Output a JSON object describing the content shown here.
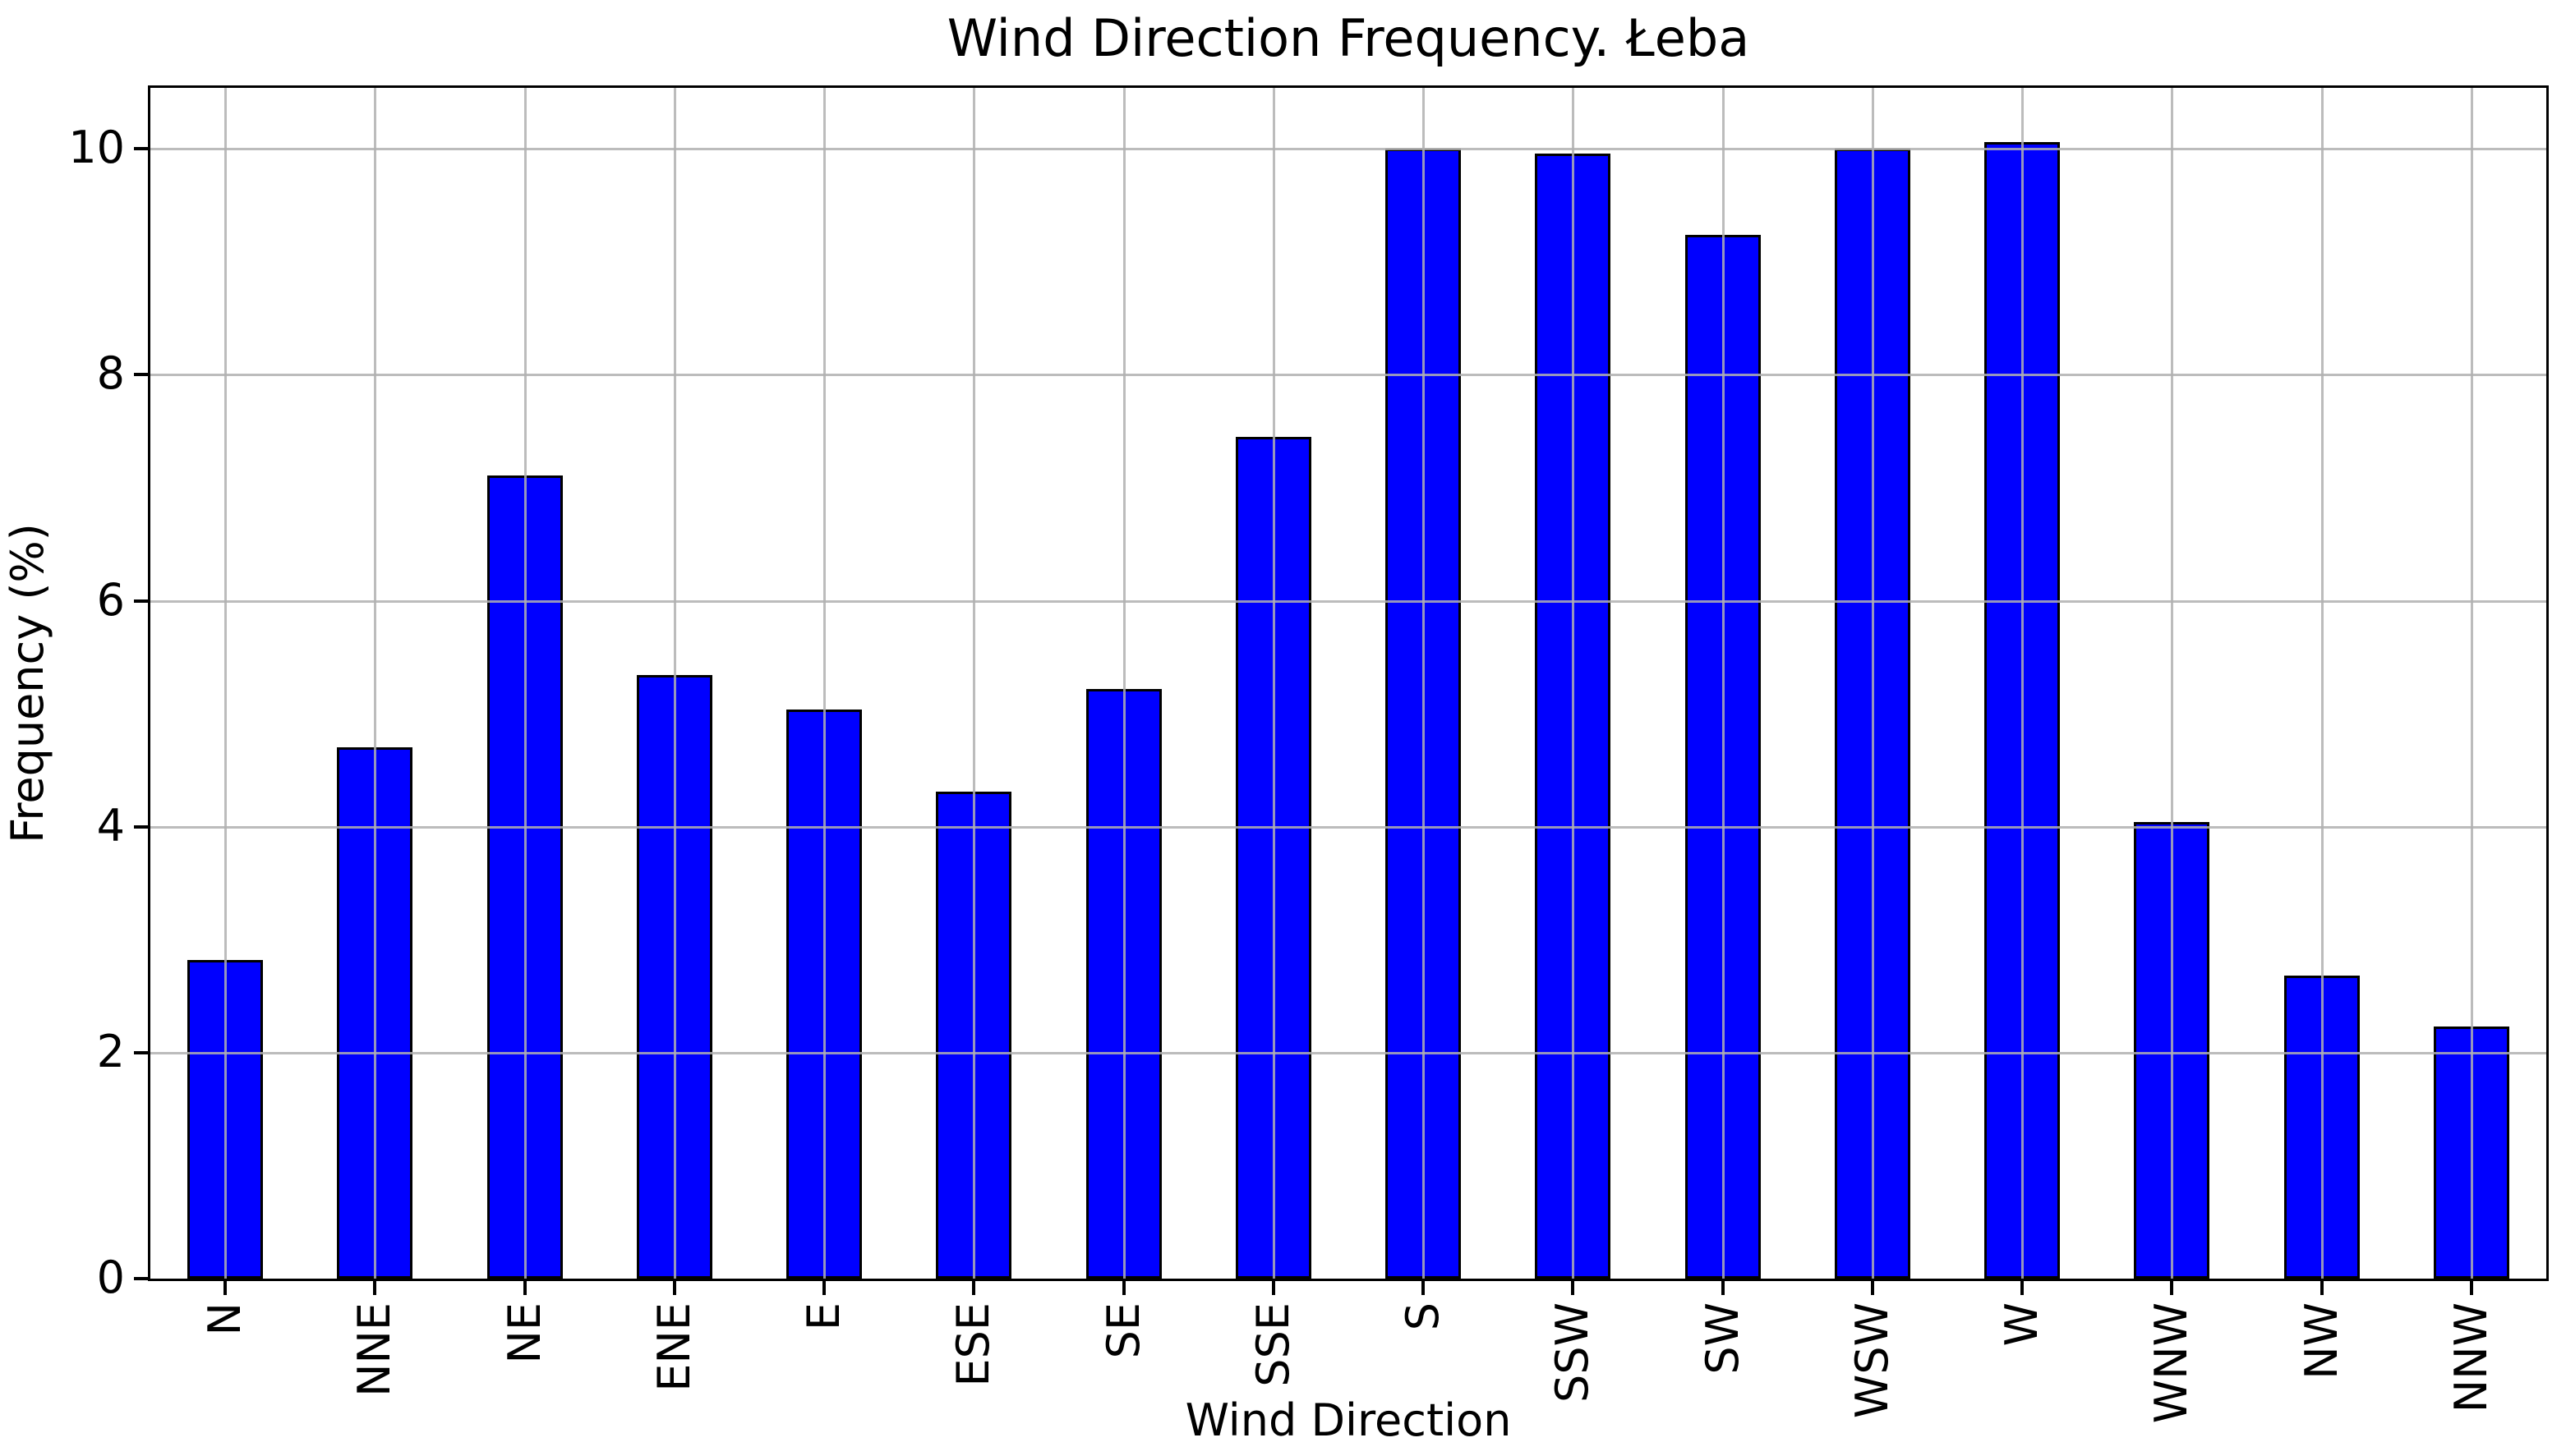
{
  "chart_data": {
    "type": "bar",
    "title": "Wind Direction Frequency. Łeba",
    "xlabel": "Wind Direction",
    "ylabel": "Frequency (%)",
    "categories": [
      "N",
      "NNE",
      "NE",
      "ENE",
      "E",
      "ESE",
      "SE",
      "SSE",
      "S",
      "SSW",
      "SW",
      "WSW",
      "W",
      "WNW",
      "NW",
      "NNW"
    ],
    "values": [
      2.82,
      4.7,
      7.11,
      5.34,
      5.04,
      4.31,
      5.22,
      7.45,
      10.0,
      9.96,
      9.24,
      10.0,
      10.06,
      4.04,
      2.68,
      2.23
    ],
    "yticks": [
      0,
      2,
      4,
      6,
      8,
      10
    ],
    "ylim": [
      0,
      10.54
    ],
    "grid": "both",
    "legend": "none",
    "colors": {
      "bar_fill": "#0000FF",
      "bar_edge": "#000000",
      "gridline": "#B0B0B0",
      "spine": "#000000",
      "text": "#000000",
      "background": "#FFFFFF"
    }
  }
}
